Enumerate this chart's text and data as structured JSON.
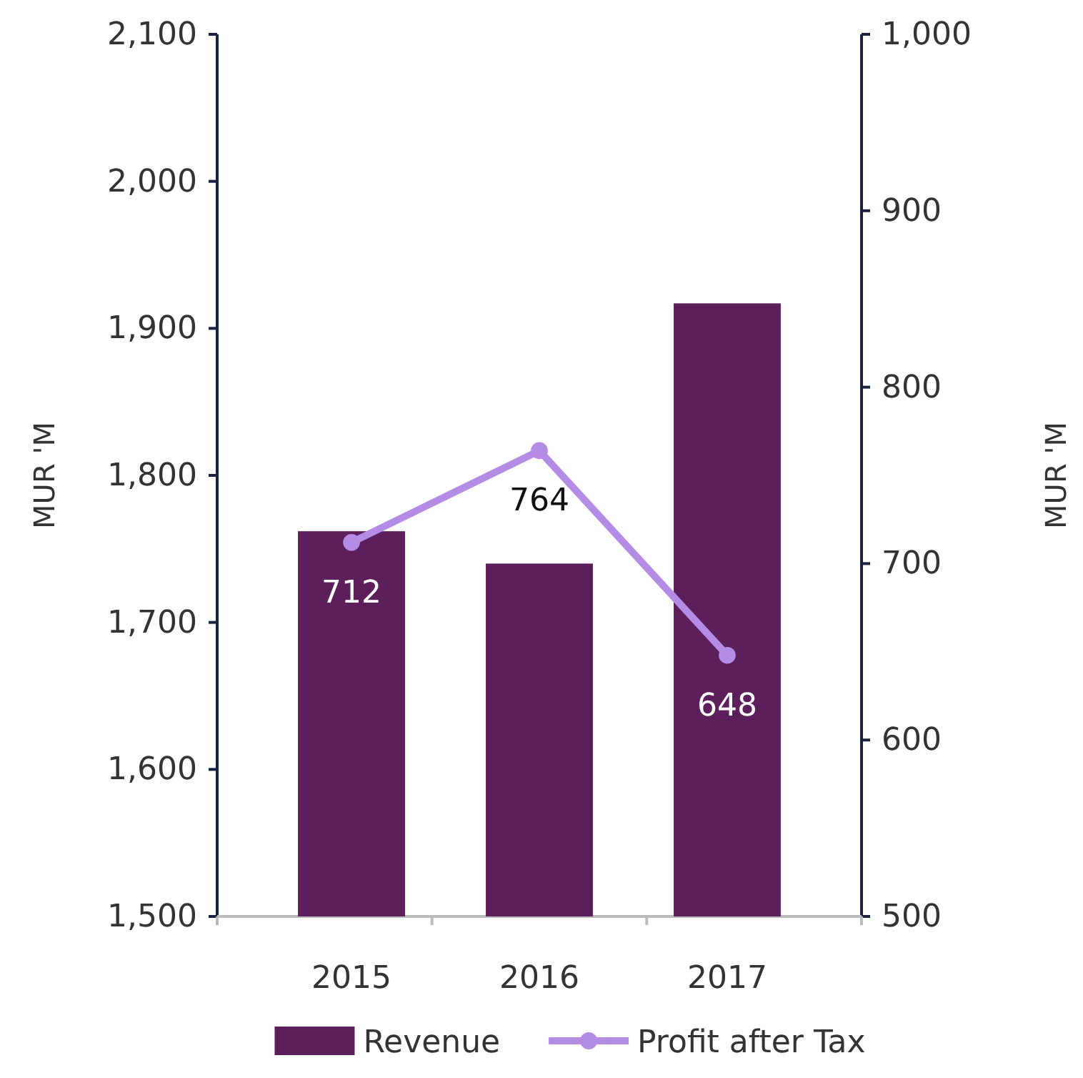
{
  "chart_data": {
    "type": "bar",
    "categories": [
      "2015",
      "2016",
      "2017"
    ],
    "series": [
      {
        "name": "Revenue",
        "color": "#5c1f5b",
        "values": [
          1762,
          1740,
          1917
        ]
      },
      {
        "name": "Profit after Tax",
        "type": "line",
        "axis": "y2",
        "color": "#b48ce6",
        "values": [
          712,
          764,
          648
        ],
        "marker": "circle",
        "data_labels": true
      }
    ],
    "ylabel": "MUR 'M",
    "y2label": "MUR 'M",
    "ylim": [
      1500,
      2100
    ],
    "yticks": [
      {
        "value": 1500,
        "label": "1,500"
      },
      {
        "value": 1600,
        "label": "1,600"
      },
      {
        "value": 1700,
        "label": "1,700"
      },
      {
        "value": 1800,
        "label": "1,800"
      },
      {
        "value": 1900,
        "label": "1,900"
      },
      {
        "value": 2000,
        "label": "2,000"
      },
      {
        "value": 2100,
        "label": "2,100"
      }
    ],
    "y2lim": [
      500,
      1000
    ],
    "y2ticks": [
      500,
      600,
      700,
      800,
      900,
      {
        "value": 1000,
        "label": "1,000"
      }
    ],
    "grid": false,
    "legend": "bottom"
  }
}
